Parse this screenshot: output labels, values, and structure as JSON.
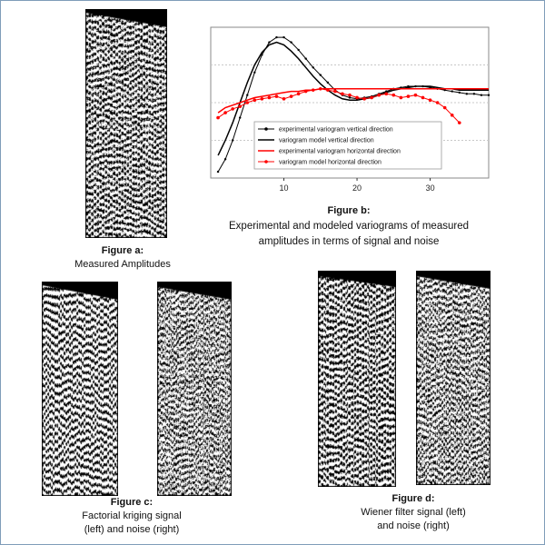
{
  "figure_a": {
    "caption_head": "Figure a:",
    "caption_body": "Measured Amplitudes"
  },
  "figure_b": {
    "caption_head": "Figure b:",
    "caption_body_line1": "Experimental and modeled  variograms of measured",
    "caption_body_line2": "amplitudes in terms of signal and noise"
  },
  "figure_c": {
    "caption_head": "Figure c:",
    "caption_body_line1": "Factorial kriging signal",
    "caption_body_line2": "(left) and noise (right)"
  },
  "figure_d": {
    "caption_head": "Figure d:",
    "caption_body_line1": "Wiener filter signal (left)",
    "caption_body_line2": "and noise (right)"
  },
  "colors": {
    "black": "#000000",
    "red": "#ff0000",
    "grid": "#c8c8c8",
    "frame": "#7f9db9"
  },
  "chart_data": {
    "type": "line",
    "xlim": [
      0,
      38
    ],
    "ylim": [
      0,
      1.2
    ],
    "x_ticks": [
      10,
      20,
      30
    ],
    "grid": "horizontal",
    "legend_placement": "bottom-center",
    "series": [
      {
        "name": "experimental variogram vertical direction",
        "color": "#000000",
        "style": "points-line",
        "x": [
          1,
          2,
          3,
          4,
          5,
          6,
          7,
          8,
          9,
          10,
          11,
          12,
          13,
          14,
          15,
          16,
          17,
          18,
          19,
          20,
          21,
          22,
          23,
          24,
          25,
          26,
          27,
          28,
          29,
          30,
          31,
          32,
          33,
          34,
          35,
          36,
          37,
          38
        ],
        "y": [
          0.05,
          0.15,
          0.3,
          0.48,
          0.66,
          0.84,
          0.98,
          1.08,
          1.12,
          1.12,
          1.08,
          1.02,
          0.95,
          0.88,
          0.82,
          0.76,
          0.7,
          0.66,
          0.64,
          0.63,
          0.64,
          0.65,
          0.67,
          0.69,
          0.71,
          0.72,
          0.73,
          0.73,
          0.73,
          0.72,
          0.71,
          0.7,
          0.69,
          0.68,
          0.67,
          0.67,
          0.66,
          0.66
        ]
      },
      {
        "name": "variogram model vertical direction",
        "color": "#000000",
        "style": "line",
        "x": [
          1,
          2,
          3,
          4,
          5,
          6,
          7,
          8,
          9,
          10,
          11,
          12,
          13,
          14,
          15,
          16,
          17,
          18,
          19,
          20,
          21,
          22,
          23,
          24,
          25,
          26,
          27,
          28,
          29,
          30,
          31,
          32,
          33,
          34,
          35,
          36,
          37,
          38
        ],
        "y": [
          0.18,
          0.3,
          0.44,
          0.6,
          0.76,
          0.9,
          1.0,
          1.06,
          1.08,
          1.06,
          1.01,
          0.95,
          0.88,
          0.81,
          0.75,
          0.7,
          0.66,
          0.63,
          0.62,
          0.62,
          0.63,
          0.64,
          0.66,
          0.68,
          0.7,
          0.71,
          0.72,
          0.73,
          0.73,
          0.73,
          0.72,
          0.71,
          0.71,
          0.7,
          0.7,
          0.7,
          0.7,
          0.7
        ]
      },
      {
        "name": "experimental variogram horizontal direction",
        "color": "#ff0000",
        "style": "line",
        "x": [
          1,
          2,
          3,
          4,
          5,
          6,
          7,
          8,
          9,
          10,
          11,
          12,
          13,
          14,
          15,
          16,
          17,
          18,
          19,
          20,
          21,
          22,
          23,
          24,
          25,
          26,
          27,
          28,
          29,
          30,
          31,
          32,
          33,
          34,
          35,
          36,
          37,
          38
        ],
        "y": [
          0.52,
          0.56,
          0.58,
          0.6,
          0.62,
          0.64,
          0.65,
          0.66,
          0.67,
          0.68,
          0.69,
          0.69,
          0.7,
          0.7,
          0.71,
          0.71,
          0.71,
          0.71,
          0.71,
          0.71,
          0.71,
          0.71,
          0.71,
          0.71,
          0.71,
          0.71,
          0.71,
          0.71,
          0.71,
          0.71,
          0.71,
          0.71,
          0.71,
          0.71,
          0.71,
          0.71,
          0.71,
          0.71
        ]
      },
      {
        "name": "variogram model horizontal direction",
        "color": "#ff0000",
        "style": "points-line",
        "x": [
          1,
          2,
          3,
          4,
          5,
          6,
          7,
          8,
          9,
          10,
          11,
          12,
          13,
          14,
          15,
          16,
          17,
          18,
          19,
          20,
          21,
          22,
          23,
          24,
          25,
          26,
          27,
          28,
          29,
          30,
          31,
          32,
          33,
          34
        ],
        "y": [
          0.48,
          0.52,
          0.55,
          0.57,
          0.6,
          0.62,
          0.63,
          0.64,
          0.65,
          0.63,
          0.65,
          0.67,
          0.69,
          0.7,
          0.71,
          0.7,
          0.69,
          0.67,
          0.66,
          0.64,
          0.63,
          0.64,
          0.66,
          0.67,
          0.66,
          0.64,
          0.65,
          0.66,
          0.64,
          0.62,
          0.6,
          0.56,
          0.5,
          0.44
        ]
      }
    ]
  }
}
